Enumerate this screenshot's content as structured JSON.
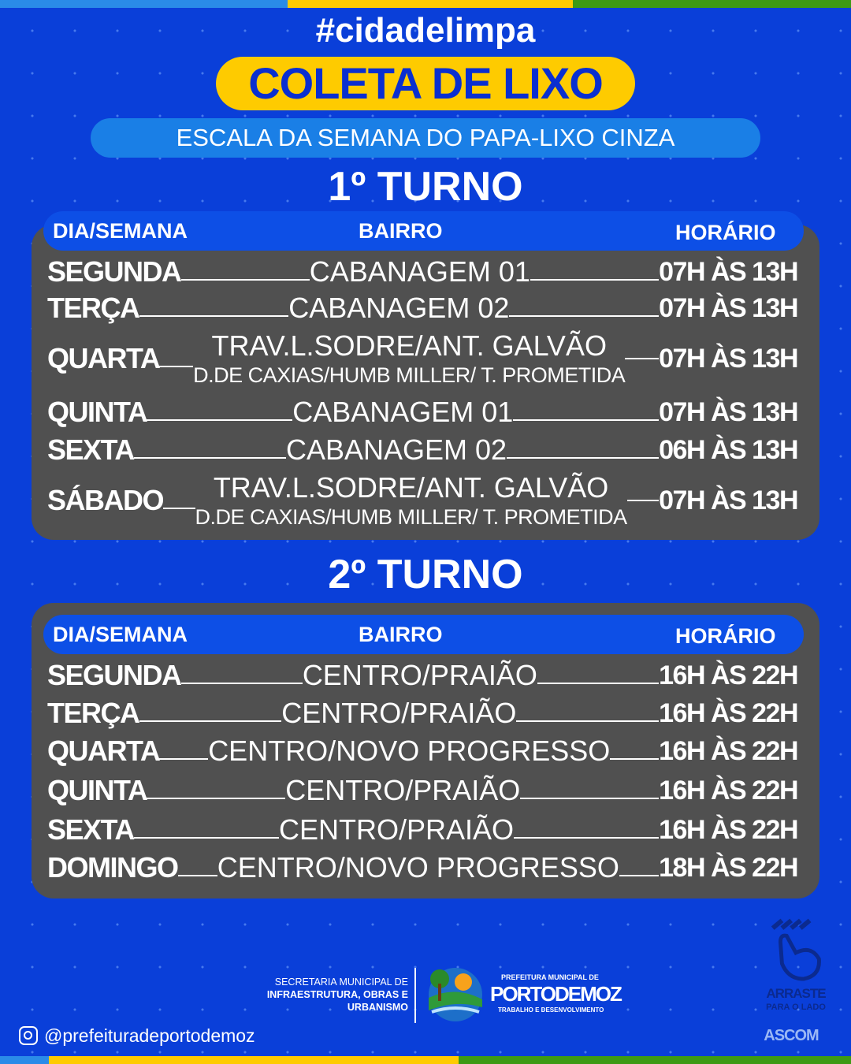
{
  "colors": {
    "background": "#0a3fd9",
    "yellow": "#fecb00",
    "light_blue": "#1a7fe6",
    "green": "#3d9a14",
    "table": "#505050"
  },
  "hashtag": "#cidadelimpa",
  "title": "COLETA DE LIXO",
  "subtitle": "ESCALA DA SEMANA DO PAPA-LIXO CINZA",
  "headers": {
    "day": "DIA/SEMANA",
    "bairro": "BAIRRO",
    "horario": "HORÁRIO"
  },
  "turno1": {
    "title": "1º TURNO",
    "rows": [
      {
        "day": "SEGUNDA",
        "bairro": "CABANAGEM 01",
        "sub": "",
        "hours": "07H ÀS 13H"
      },
      {
        "day": "TERÇA",
        "bairro": "CABANAGEM 02",
        "sub": "",
        "hours": "07H ÀS 13H"
      },
      {
        "day": "QUARTA",
        "bairro": "TRAV.L.SODRE/ANT. GALVÃO",
        "sub": "D.DE CAXIAS/HUMB MILLER/ T. PROMETIDA",
        "hours": "07H ÀS 13H"
      },
      {
        "day": "QUINTA",
        "bairro": "CABANAGEM 01",
        "sub": "",
        "hours": "07H ÀS 13H"
      },
      {
        "day": "SEXTA",
        "bairro": "CABANAGEM 02",
        "sub": "",
        "hours": "06H ÀS 13H"
      },
      {
        "day": "SÁBADO",
        "bairro": "TRAV.L.SODRE/ANT. GALVÃO",
        "sub": "D.DE CAXIAS/HUMB MILLER/ T. PROMETIDA",
        "hours": "07H ÀS 13H"
      }
    ]
  },
  "turno2": {
    "title": "2º TURNO",
    "rows": [
      {
        "day": "SEGUNDA",
        "bairro": "CENTRO/PRAIÃO",
        "hours": "16H ÀS 22H"
      },
      {
        "day": "TERÇA",
        "bairro": "CENTRO/PRAIÃO",
        "hours": "16H ÀS 22H"
      },
      {
        "day": "QUARTA",
        "bairro": "CENTRO/NOVO PROGRESSO",
        "hours": "16H ÀS 22H"
      },
      {
        "day": "QUINTA",
        "bairro": "CENTRO/PRAIÃO",
        "hours": "16H ÀS 22H"
      },
      {
        "day": "SEXTA",
        "bairro": "CENTRO/PRAIÃO",
        "hours": "16H ÀS 22H"
      },
      {
        "day": "DOMINGO",
        "bairro": "CENTRO/NOVO PROGRESSO",
        "hours": "18H ÀS 22H"
      }
    ]
  },
  "footer": {
    "secretaria_line1": "SECRETARIA MUNICIPAL DE",
    "secretaria_line2": "INFRAESTRUTURA, OBRAS E",
    "secretaria_line3": "URBANISMO",
    "prefeitura_small": "PREFEITURA MUNICIPAL DE",
    "prefeitura_name": "PORTODEMOZ",
    "prefeitura_slogan": "TRABALHO E DESENVOLVIMENTO",
    "instagram": "@prefeituradeportodemoz",
    "swipe_line1": "ARRASTE",
    "swipe_line2": "PARA O LADO",
    "ascom": "ASCOM"
  }
}
